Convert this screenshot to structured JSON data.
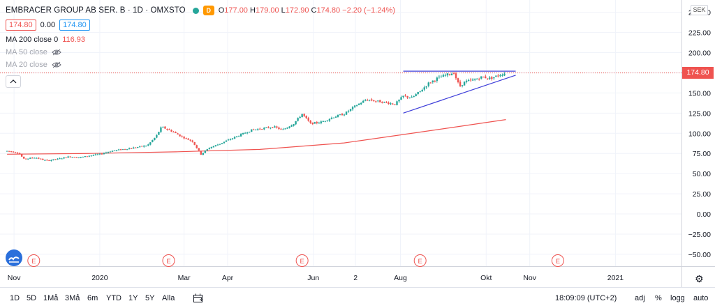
{
  "legend": {
    "title": "EMBRACER GROUP AB SER. B · 1D · OMXSTO",
    "badge": "D",
    "ohlc": [
      {
        "k": "O",
        "v": "177.00"
      },
      {
        "k": "H",
        "v": "179.00"
      },
      {
        "k": "L",
        "v": "172.90"
      },
      {
        "k": "C",
        "v": "174.80 −2.20 (−1.24%)"
      }
    ],
    "bid": "174.80",
    "spread": "0.00",
    "ask": "174.80",
    "ma200_label": "MA 200 close 0",
    "ma200_value": "116.93",
    "ma50_label": "MA 50 close",
    "ma20_label": "MA 20 close"
  },
  "currency": "SEK",
  "last_price_tag": "174.80",
  "toolbar": {
    "timeframes": [
      "1D",
      "5D",
      "1Må",
      "3Må",
      "6m",
      "YTD",
      "1Y",
      "5Y",
      "Alla"
    ],
    "clock": "18:09:09 (UTC+2)",
    "right": [
      "adj",
      "%",
      "logg",
      "auto"
    ]
  },
  "colors": {
    "up": "#26a69a",
    "down": "#ef5350",
    "ma200": "#ef5350",
    "trendline": "#3f3fd9",
    "grid": "#f0f3fa",
    "last_price_line": "#ef5350"
  },
  "chart_data": {
    "type": "candlestick",
    "title": "",
    "ylim": [
      -60,
      250
    ],
    "y_ticks": [
      "250.00",
      "225.00",
      "200.00",
      "175.00",
      "150.00",
      "125.00",
      "100.00",
      "75.00",
      "50.00",
      "25.00",
      "0.00",
      "−25.00",
      "−50.00"
    ],
    "y_tick_values": [
      250,
      225,
      200,
      175,
      150,
      125,
      100,
      75,
      50,
      25,
      0,
      -25,
      -50
    ],
    "x_ticks": [
      "Nov",
      "2020",
      "Mar",
      "Apr",
      "Jun",
      "2",
      "Aug",
      "Okt",
      "Nov",
      "2021"
    ],
    "x_tick_days": [
      5,
      66,
      126,
      157,
      218,
      248,
      280,
      341,
      372,
      433
    ],
    "x_range_days": [
      -5,
      480
    ],
    "last_price": 174.8,
    "price_path": [
      [
        0,
        78
      ],
      [
        8,
        76
      ],
      [
        12,
        68
      ],
      [
        20,
        70
      ],
      [
        28,
        66
      ],
      [
        36,
        68
      ],
      [
        44,
        71
      ],
      [
        52,
        70
      ],
      [
        58,
        72
      ],
      [
        66,
        74
      ],
      [
        74,
        78
      ],
      [
        82,
        80
      ],
      [
        90,
        82
      ],
      [
        100,
        85
      ],
      [
        106,
        96
      ],
      [
        110,
        108
      ],
      [
        118,
        102
      ],
      [
        124,
        96
      ],
      [
        132,
        90
      ],
      [
        138,
        74
      ],
      [
        144,
        82
      ],
      [
        150,
        86
      ],
      [
        158,
        92
      ],
      [
        166,
        98
      ],
      [
        174,
        104
      ],
      [
        182,
        106
      ],
      [
        190,
        108
      ],
      [
        196,
        104
      ],
      [
        204,
        112
      ],
      [
        210,
        124
      ],
      [
        216,
        112
      ],
      [
        224,
        114
      ],
      [
        232,
        120
      ],
      [
        240,
        124
      ],
      [
        248,
        134
      ],
      [
        256,
        142
      ],
      [
        262,
        140
      ],
      [
        270,
        138
      ],
      [
        276,
        136
      ],
      [
        282,
        146
      ],
      [
        288,
        144
      ],
      [
        294,
        152
      ],
      [
        300,
        162
      ],
      [
        306,
        168
      ],
      [
        312,
        172
      ],
      [
        318,
        175
      ],
      [
        322,
        158
      ],
      [
        326,
        164
      ],
      [
        332,
        166
      ],
      [
        338,
        170
      ],
      [
        344,
        168
      ],
      [
        350,
        172
      ],
      [
        355,
        174.8
      ]
    ],
    "series": [
      {
        "name": "MA 200 close 0",
        "points": [
          [
            0,
            74
          ],
          [
            60,
            75
          ],
          [
            120,
            77
          ],
          [
            180,
            80
          ],
          [
            240,
            88
          ],
          [
            280,
            98
          ],
          [
            320,
            108
          ],
          [
            355,
            117
          ]
        ]
      }
    ],
    "annotations": {
      "resistance_line": {
        "from": [
          282,
          177
        ],
        "to": [
          362,
          177
        ]
      },
      "support_line": {
        "from": [
          282,
          125
        ],
        "to": [
          362,
          172
        ]
      },
      "event_markers": {
        "label": "E",
        "days": [
          19,
          115,
          210,
          294,
          392
        ]
      }
    }
  }
}
